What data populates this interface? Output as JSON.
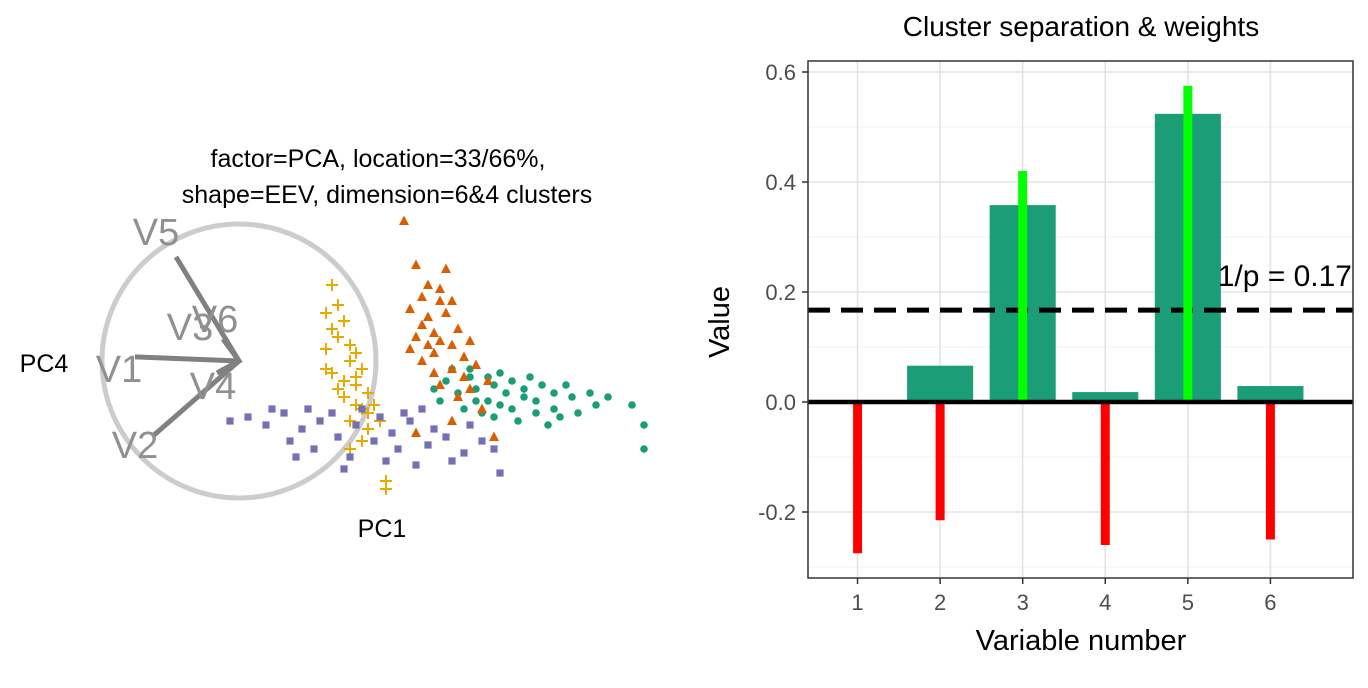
{
  "chart_data": [
    {
      "type": "scatter",
      "subtitle_lines": [
        "factor=PCA, location=33/66%,",
        "shape=EEV, dimension=6&4 clusters"
      ],
      "xlabel": "PC1",
      "ylabel": "PC4",
      "axes_visible": false,
      "grid": false,
      "projection_axes": [
        {
          "label": "V1",
          "x": -0.76,
          "y": 0.03
        },
        {
          "label": "V2",
          "x": -0.62,
          "y": -0.54
        },
        {
          "label": "V3",
          "x": -0.02,
          "y": 0.02
        },
        {
          "label": "V4",
          "x": -0.02,
          "y": -0.02
        },
        {
          "label": "V5",
          "x": -0.46,
          "y": 0.76
        },
        {
          "label": "V6",
          "x": -0.01,
          "y": 0.03
        }
      ],
      "series": [
        {
          "shape": "circle",
          "color": "#1b9e77",
          "points": [
            [
              2.1,
              0.3
            ],
            [
              1.9,
              0.5
            ],
            [
              2.4,
              0.2
            ],
            [
              1.6,
              0.4
            ],
            [
              2.6,
              0.1
            ],
            [
              3.2,
              0.2
            ],
            [
              2.9,
              -0.1
            ],
            [
              1.8,
              0.1
            ],
            [
              2.2,
              -0.1
            ],
            [
              1.5,
              0.7
            ],
            [
              1.3,
              0.3
            ],
            [
              2.0,
              0.8
            ],
            [
              2.7,
              0.5
            ],
            [
              3.5,
              0.3
            ],
            [
              3.0,
              -0.3
            ],
            [
              1.7,
              -0.2
            ],
            [
              2.3,
              -0.4
            ],
            [
              1.1,
              0.6
            ],
            [
              1.4,
              -0.1
            ],
            [
              2.5,
              0.7
            ],
            [
              3.8,
              0.2
            ],
            [
              4.2,
              0.0
            ],
            [
              3.3,
              -0.2
            ],
            [
              2.8,
              -0.5
            ],
            [
              1.9,
              -0.3
            ],
            [
              1.2,
              0.9
            ],
            [
              0.9,
              0.4
            ],
            [
              2.0,
              0.0
            ],
            [
              2.4,
              0.4
            ],
            [
              1.6,
              0.1
            ],
            [
              4.4,
              -0.5
            ],
            [
              4.4,
              -1.1
            ],
            [
              3.6,
              0.0
            ],
            [
              2.9,
              0.3
            ],
            [
              1.0,
              0.1
            ],
            [
              1.5,
              0.9
            ],
            [
              2.6,
              -0.2
            ],
            [
              3.1,
              0.5
            ],
            [
              2.2,
              0.6
            ],
            [
              1.8,
              0.7
            ]
          ]
        },
        {
          "shape": "triangle",
          "color": "#d95f02",
          "points": [
            [
              0.8,
              2.2
            ],
            [
              0.9,
              1.8
            ],
            [
              1.0,
              2.6
            ],
            [
              0.7,
              2.0
            ],
            [
              1.2,
              1.5
            ],
            [
              0.6,
              1.7
            ],
            [
              1.1,
              2.3
            ],
            [
              0.9,
              1.3
            ],
            [
              1.3,
              1.9
            ],
            [
              0.5,
              2.4
            ],
            [
              0.8,
              3.0
            ],
            [
              1.0,
              2.9
            ],
            [
              1.4,
              1.2
            ],
            [
              0.7,
              1.1
            ],
            [
              1.2,
              0.9
            ],
            [
              0.6,
              3.5
            ],
            [
              1.6,
              1.0
            ],
            [
              1.5,
              0.4
            ],
            [
              1.8,
              0.6
            ],
            [
              1.0,
              0.5
            ],
            [
              1.3,
              0.2
            ],
            [
              0.9,
              0.8
            ],
            [
              1.7,
              -0.1
            ],
            [
              1.2,
              -0.4
            ],
            [
              0.6,
              -0.7
            ],
            [
              1.9,
              -0.8
            ],
            [
              0.4,
              4.6
            ],
            [
              1.1,
              3.4
            ],
            [
              0.8,
              1.5
            ],
            [
              1.4,
              0.7
            ],
            [
              0.7,
              2.7
            ],
            [
              1.0,
              1.6
            ],
            [
              1.5,
              1.6
            ],
            [
              0.5,
              1.4
            ],
            [
              1.2,
              2.6
            ]
          ]
        },
        {
          "shape": "plus",
          "color": "#e6ab02",
          "points": [
            [
              -0.9,
              1.4
            ],
            [
              -0.7,
              1.7
            ],
            [
              -0.5,
              1.1
            ],
            [
              -0.8,
              0.8
            ],
            [
              -0.4,
              0.5
            ],
            [
              -0.6,
              0.2
            ],
            [
              -0.3,
              -0.1
            ],
            [
              -0.5,
              -0.4
            ],
            [
              -0.2,
              -0.6
            ],
            [
              -0.7,
              2.5
            ],
            [
              -0.8,
              3.0
            ],
            [
              -0.6,
              2.1
            ],
            [
              -0.9,
              2.3
            ],
            [
              -0.4,
              1.3
            ],
            [
              -0.3,
              0.9
            ],
            [
              -0.1,
              0.0
            ],
            [
              -0.3,
              -0.9
            ],
            [
              -0.5,
              -1.1
            ],
            [
              -0.2,
              -0.2
            ],
            [
              -0.4,
              0.0
            ],
            [
              0.0,
              -0.4
            ],
            [
              -0.6,
              0.6
            ],
            [
              -0.8,
              1.9
            ],
            [
              -0.5,
              1.5
            ],
            [
              -0.7,
              0.4
            ],
            [
              0.1,
              -1.9
            ],
            [
              0.1,
              -2.1
            ],
            [
              -0.4,
              0.7
            ],
            [
              -0.9,
              0.9
            ],
            [
              -0.2,
              0.3
            ]
          ]
        },
        {
          "shape": "square",
          "color": "#7570b3",
          "points": [
            [
              -2.2,
              -0.3
            ],
            [
              -1.9,
              -0.5
            ],
            [
              -1.6,
              -0.2
            ],
            [
              -1.3,
              -0.6
            ],
            [
              -1.0,
              -0.4
            ],
            [
              -0.7,
              -0.8
            ],
            [
              -0.4,
              -0.5
            ],
            [
              -0.1,
              -0.9
            ],
            [
              0.2,
              -0.7
            ],
            [
              0.5,
              -0.4
            ],
            [
              0.8,
              -1.0
            ],
            [
              1.1,
              -0.8
            ],
            [
              1.4,
              -1.2
            ],
            [
              1.7,
              -0.9
            ],
            [
              -1.8,
              -0.1
            ],
            [
              -1.5,
              -0.9
            ],
            [
              -1.1,
              -1.1
            ],
            [
              -0.8,
              -0.2
            ],
            [
              -0.5,
              -1.3
            ],
            [
              0.0,
              -0.3
            ],
            [
              0.3,
              -1.1
            ],
            [
              0.6,
              -1.5
            ],
            [
              0.9,
              -0.6
            ],
            [
              1.2,
              -1.4
            ],
            [
              -2.5,
              -0.4
            ],
            [
              -1.2,
              -0.1
            ],
            [
              -0.3,
              -0.1
            ],
            [
              0.4,
              -0.2
            ],
            [
              1.5,
              -0.5
            ],
            [
              2.0,
              -1.7
            ],
            [
              1.9,
              -1.1
            ],
            [
              -0.6,
              -1.6
            ],
            [
              0.1,
              -1.4
            ],
            [
              -1.4,
              -1.3
            ],
            [
              0.7,
              -0.1
            ]
          ]
        }
      ]
    },
    {
      "type": "bar",
      "title": "Cluster separation & weights",
      "xlabel": "Variable number",
      "ylabel": "Value",
      "categories": [
        "1",
        "2",
        "3",
        "4",
        "5",
        "6"
      ],
      "ylim": [
        -0.32,
        0.62
      ],
      "yticks": [
        -0.2,
        0.0,
        0.2,
        0.4,
        0.6
      ],
      "ytick_labels": [
        "-0.2",
        "0.0",
        "0.2",
        "0.4",
        "0.6"
      ],
      "grid": true,
      "series": [
        {
          "kind": "bar",
          "color": "#1b9e77",
          "values": [
            0.0,
            0.066,
            0.358,
            0.018,
            0.524,
            0.029
          ]
        },
        {
          "kind": "weight",
          "color_positive": "#00ff00",
          "color_negative": "#ff0000",
          "values": [
            -0.275,
            -0.215,
            0.42,
            -0.26,
            0.575,
            -0.25
          ]
        }
      ],
      "reference_line": {
        "value": 0.167,
        "label": "1/p = 0.17",
        "style": "dashed",
        "color": "#000000"
      }
    }
  ]
}
